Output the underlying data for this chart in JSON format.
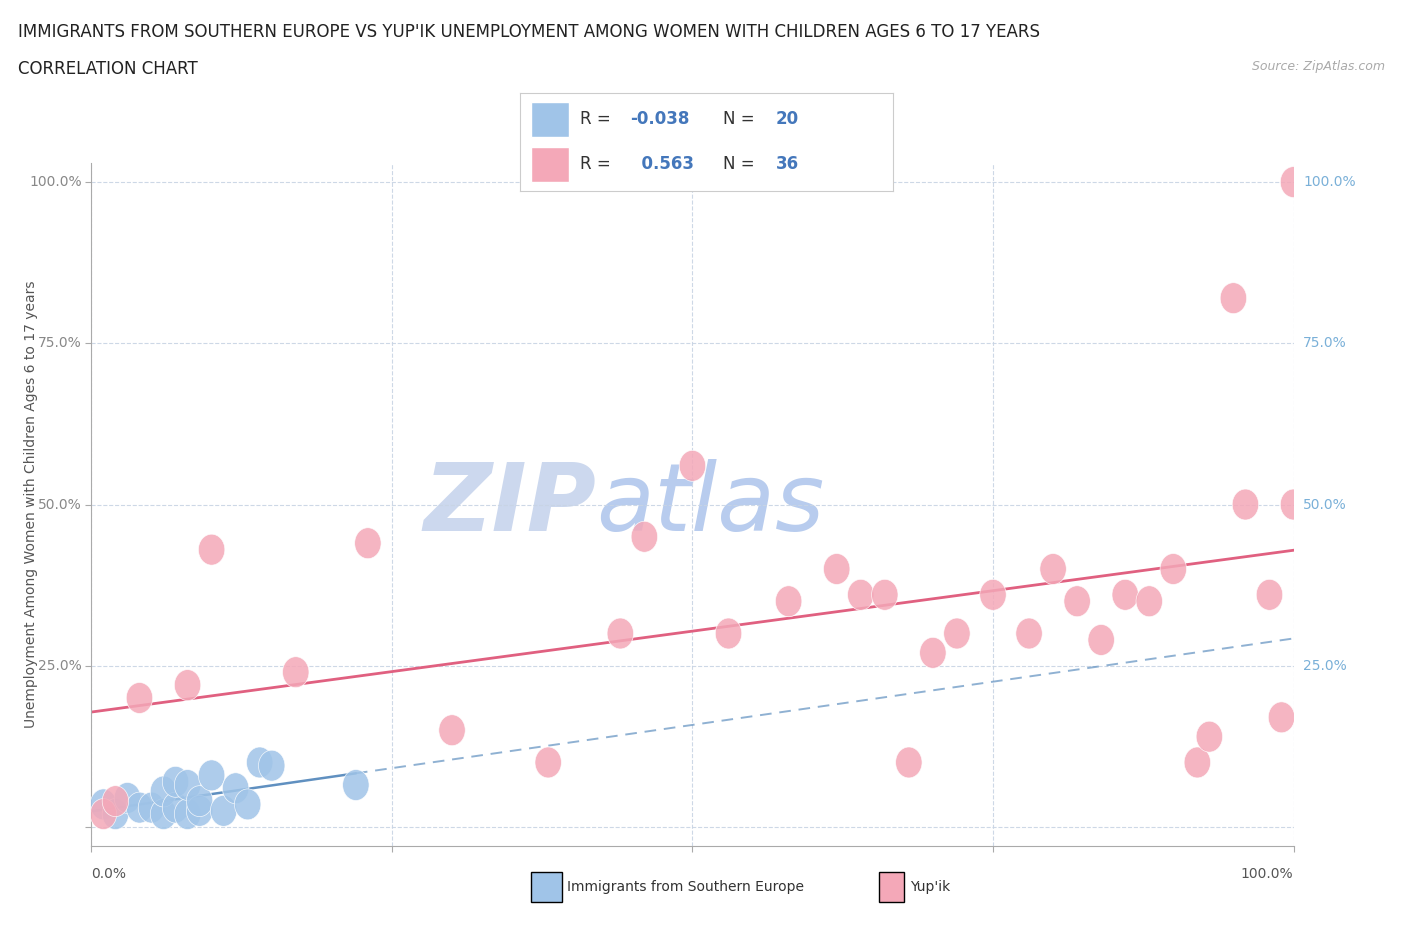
{
  "title_line1": "IMMIGRANTS FROM SOUTHERN EUROPE VS YUP'IK UNEMPLOYMENT AMONG WOMEN WITH CHILDREN AGES 6 TO 17 YEARS",
  "title_line2": "CORRELATION CHART",
  "source_text": "Source: ZipAtlas.com",
  "ylabel": "Unemployment Among Women with Children Ages 6 to 17 years",
  "xlim": [
    0,
    1.0
  ],
  "ylim": [
    -0.03,
    1.03
  ],
  "blue_color": "#a0c4e8",
  "pink_color": "#f4a8b8",
  "blue_line_color": "#6090c0",
  "pink_line_color": "#e06080",
  "grid_color": "#c8d4e4",
  "watermark_zip_color": "#d0ddf0",
  "watermark_atlas_color": "#c0d4e8",
  "background_color": "#ffffff",
  "blue_scatter_x": [
    0.01,
    0.02,
    0.03,
    0.04,
    0.05,
    0.06,
    0.06,
    0.07,
    0.07,
    0.08,
    0.08,
    0.09,
    0.09,
    0.1,
    0.11,
    0.12,
    0.13,
    0.14,
    0.15,
    0.22
  ],
  "blue_scatter_y": [
    0.035,
    0.02,
    0.045,
    0.03,
    0.03,
    0.02,
    0.055,
    0.03,
    0.07,
    0.02,
    0.065,
    0.025,
    0.04,
    0.08,
    0.025,
    0.06,
    0.035,
    0.1,
    0.095,
    0.065
  ],
  "pink_scatter_x": [
    0.01,
    0.02,
    0.04,
    0.08,
    0.1,
    0.17,
    0.23,
    0.3,
    0.38,
    0.44,
    0.46,
    0.5,
    0.53,
    0.58,
    0.62,
    0.64,
    0.66,
    0.68,
    0.7,
    0.72,
    0.75,
    0.78,
    0.8,
    0.82,
    0.84,
    0.86,
    0.88,
    0.9,
    0.92,
    0.93,
    0.95,
    0.96,
    0.98,
    0.99,
    1.0,
    1.0
  ],
  "pink_scatter_y": [
    0.02,
    0.04,
    0.2,
    0.22,
    0.43,
    0.24,
    0.44,
    0.15,
    0.1,
    0.3,
    0.45,
    0.56,
    0.3,
    0.35,
    0.4,
    0.36,
    0.36,
    0.1,
    0.27,
    0.3,
    0.36,
    0.3,
    0.4,
    0.35,
    0.29,
    0.36,
    0.35,
    0.4,
    0.1,
    0.14,
    0.82,
    0.5,
    0.36,
    0.17,
    0.5,
    1.0
  ],
  "title_fontsize": 12,
  "subtitle_fontsize": 12,
  "axis_label_fontsize": 10,
  "tick_fontsize": 10,
  "legend_fontsize": 12
}
